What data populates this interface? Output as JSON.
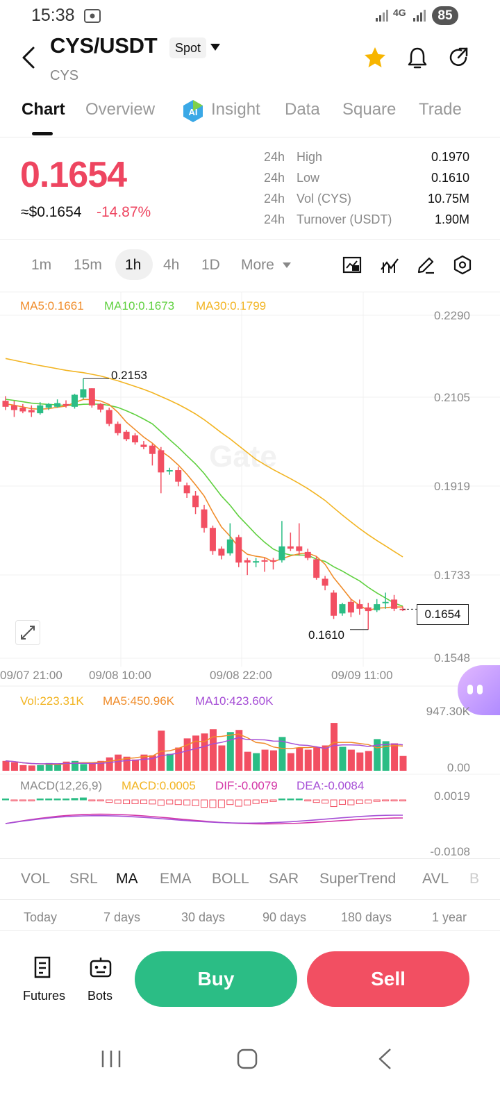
{
  "status_bar": {
    "time": "15:38",
    "network": "4G",
    "battery": "85"
  },
  "header": {
    "pair": "CYS/USDT",
    "market_type": "Spot",
    "base": "CYS"
  },
  "tabs": [
    {
      "label": "Chart"
    },
    {
      "label": "Overview"
    },
    {
      "label": "Insight"
    },
    {
      "label": "Data"
    },
    {
      "label": "Square"
    },
    {
      "label": "Trade"
    }
  ],
  "price": {
    "last": "0.1654",
    "usd": "≈$0.1654",
    "change": "-14.87%"
  },
  "stats": [
    {
      "period": "24h",
      "label": "High",
      "value": "0.1970"
    },
    {
      "period": "24h",
      "label": "Low",
      "value": "0.1610"
    },
    {
      "period": "24h",
      "label": "Vol (CYS)",
      "value": "10.75M"
    },
    {
      "period": "24h",
      "label": "Turnover (USDT)",
      "value": "1.90M"
    }
  ],
  "intervals": [
    "1m",
    "15m",
    "1h",
    "4h",
    "1D",
    "More"
  ],
  "chart": {
    "ma_legend": {
      "ma5": "MA5:0.1661",
      "ma10": "MA10:0.1673",
      "ma30": "MA30:0.1799"
    },
    "price_labels": [
      "0.2290",
      "0.2105",
      "0.1919",
      "0.1733",
      "0.1548"
    ],
    "current_price_tag": "0.1654",
    "high_marker": "0.2153",
    "low_marker": "0.1610",
    "date_labels": [
      "09/07 21:00",
      "09/08 10:00",
      "09/08 22:00",
      "09/09 11:00"
    ],
    "watermark": "Gate",
    "colors": {
      "up": "#2bbd85",
      "down": "#f24f62",
      "ma5": "#f08c2a",
      "ma10": "#5fd03f",
      "ma30": "#f2b422",
      "dif": "#d334a6",
      "dea": "#a64fd6"
    }
  },
  "volume": {
    "vol": "Vol:223.31K",
    "ma5": "MA5:450.96K",
    "ma10": "MA10:423.60K",
    "max_label": "947.30K",
    "min_label": "0.00"
  },
  "macd": {
    "title": "MACD(12,26,9)",
    "macd": "MACD:0.0005",
    "dif": "DIF:-0.0079",
    "dea": "DEA:-0.0084",
    "top_label": "0.0019",
    "bottom_label": "-0.0108"
  },
  "indicators": [
    "VOL",
    "SRL",
    "MA",
    "EMA",
    "BOLL",
    "SAR",
    "SuperTrend",
    "AVL",
    "B"
  ],
  "periods": [
    "Today",
    "7 days",
    "30 days",
    "90 days",
    "180 days",
    "1 year"
  ],
  "actions": {
    "futures": "Futures",
    "bots": "Bots",
    "buy": "Buy",
    "sell": "Sell"
  },
  "chart_data": {
    "type": "candlestick",
    "interval": "1h",
    "y_axis_range": [
      0.1548,
      0.229
    ],
    "price_ticks": [
      0.229,
      0.2105,
      0.1919,
      0.1733,
      0.1548
    ],
    "x_ticks": [
      "09/07 21:00",
      "09/08 10:00",
      "09/08 22:00",
      "09/09 11:00"
    ],
    "candles": [
      {
        "o": 0.2105,
        "h": 0.2115,
        "l": 0.2085,
        "c": 0.2092
      },
      {
        "o": 0.2095,
        "h": 0.2105,
        "l": 0.207,
        "c": 0.2085
      },
      {
        "o": 0.209,
        "h": 0.2098,
        "l": 0.2078,
        "c": 0.2082
      },
      {
        "o": 0.2085,
        "h": 0.2095,
        "l": 0.207,
        "c": 0.208
      },
      {
        "o": 0.2078,
        "h": 0.2102,
        "l": 0.2075,
        "c": 0.2095
      },
      {
        "o": 0.209,
        "h": 0.21,
        "l": 0.2085,
        "c": 0.2098
      },
      {
        "o": 0.2092,
        "h": 0.2108,
        "l": 0.209,
        "c": 0.21
      },
      {
        "o": 0.2098,
        "h": 0.2106,
        "l": 0.209,
        "c": 0.2094
      },
      {
        "o": 0.2092,
        "h": 0.212,
        "l": 0.2088,
        "c": 0.2118
      },
      {
        "o": 0.2112,
        "h": 0.2153,
        "l": 0.2108,
        "c": 0.213
      },
      {
        "o": 0.2132,
        "h": 0.2132,
        "l": 0.209,
        "c": 0.2095
      },
      {
        "o": 0.2098,
        "h": 0.21,
        "l": 0.208,
        "c": 0.2086
      },
      {
        "o": 0.2085,
        "h": 0.209,
        "l": 0.205,
        "c": 0.2055
      },
      {
        "o": 0.2055,
        "h": 0.206,
        "l": 0.203,
        "c": 0.2035
      },
      {
        "o": 0.2038,
        "h": 0.2042,
        "l": 0.2018,
        "c": 0.2022
      },
      {
        "o": 0.203,
        "h": 0.2035,
        "l": 0.201,
        "c": 0.2015
      },
      {
        "o": 0.201,
        "h": 0.2018,
        "l": 0.2,
        "c": 0.2005
      },
      {
        "o": 0.2008,
        "h": 0.2012,
        "l": 0.1965,
        "c": 0.199
      },
      {
        "o": 0.1998,
        "h": 0.2005,
        "l": 0.1905,
        "c": 0.195
      },
      {
        "o": 0.1955,
        "h": 0.196,
        "l": 0.1945,
        "c": 0.1955
      },
      {
        "o": 0.1955,
        "h": 0.1962,
        "l": 0.192,
        "c": 0.193
      },
      {
        "o": 0.1922,
        "h": 0.1928,
        "l": 0.1895,
        "c": 0.1905
      },
      {
        "o": 0.19,
        "h": 0.191,
        "l": 0.186,
        "c": 0.1875
      },
      {
        "o": 0.187,
        "h": 0.188,
        "l": 0.182,
        "c": 0.183
      },
      {
        "o": 0.183,
        "h": 0.1835,
        "l": 0.1772,
        "c": 0.178
      },
      {
        "o": 0.1785,
        "h": 0.179,
        "l": 0.1762,
        "c": 0.177
      },
      {
        "o": 0.1775,
        "h": 0.184,
        "l": 0.177,
        "c": 0.1805
      },
      {
        "o": 0.181,
        "h": 0.1815,
        "l": 0.1745,
        "c": 0.1755
      },
      {
        "o": 0.176,
        "h": 0.1765,
        "l": 0.1728,
        "c": 0.1755
      },
      {
        "o": 0.1755,
        "h": 0.1765,
        "l": 0.1745,
        "c": 0.1758
      },
      {
        "o": 0.176,
        "h": 0.1765,
        "l": 0.1735,
        "c": 0.1757
      },
      {
        "o": 0.176,
        "h": 0.1765,
        "l": 0.174,
        "c": 0.1758
      },
      {
        "o": 0.176,
        "h": 0.1845,
        "l": 0.1755,
        "c": 0.179
      },
      {
        "o": 0.179,
        "h": 0.182,
        "l": 0.178,
        "c": 0.1785
      },
      {
        "o": 0.179,
        "h": 0.184,
        "l": 0.177,
        "c": 0.178
      },
      {
        "o": 0.1778,
        "h": 0.1785,
        "l": 0.176,
        "c": 0.1765
      },
      {
        "o": 0.1762,
        "h": 0.1768,
        "l": 0.1718,
        "c": 0.1722
      },
      {
        "o": 0.172,
        "h": 0.1726,
        "l": 0.1695,
        "c": 0.1705
      },
      {
        "o": 0.169,
        "h": 0.1695,
        "l": 0.1633,
        "c": 0.164
      },
      {
        "o": 0.1645,
        "h": 0.1668,
        "l": 0.164,
        "c": 0.1665
      },
      {
        "o": 0.167,
        "h": 0.1676,
        "l": 0.1637,
        "c": 0.1647
      },
      {
        "o": 0.1665,
        "h": 0.1675,
        "l": 0.1642,
        "c": 0.1655
      },
      {
        "o": 0.1658,
        "h": 0.1668,
        "l": 0.161,
        "c": 0.165
      },
      {
        "o": 0.1652,
        "h": 0.1676,
        "l": 0.1648,
        "c": 0.1665
      },
      {
        "o": 0.167,
        "h": 0.169,
        "l": 0.1655,
        "c": 0.167
      },
      {
        "o": 0.1675,
        "h": 0.1685,
        "l": 0.165,
        "c": 0.1655
      },
      {
        "o": 0.1655,
        "h": 0.166,
        "l": 0.165,
        "c": 0.1654
      }
    ],
    "volume": [
      140,
      120,
      80,
      75,
      80,
      110,
      95,
      130,
      140,
      95,
      110,
      140,
      190,
      230,
      200,
      160,
      230,
      220,
      570,
      240,
      330,
      460,
      500,
      530,
      590,
      360,
      550,
      580,
      270,
      250,
      300,
      290,
      480,
      250,
      330,
      300,
      340,
      360,
      680,
      340,
      300,
      260,
      280,
      450,
      420,
      390,
      210
    ]
  }
}
